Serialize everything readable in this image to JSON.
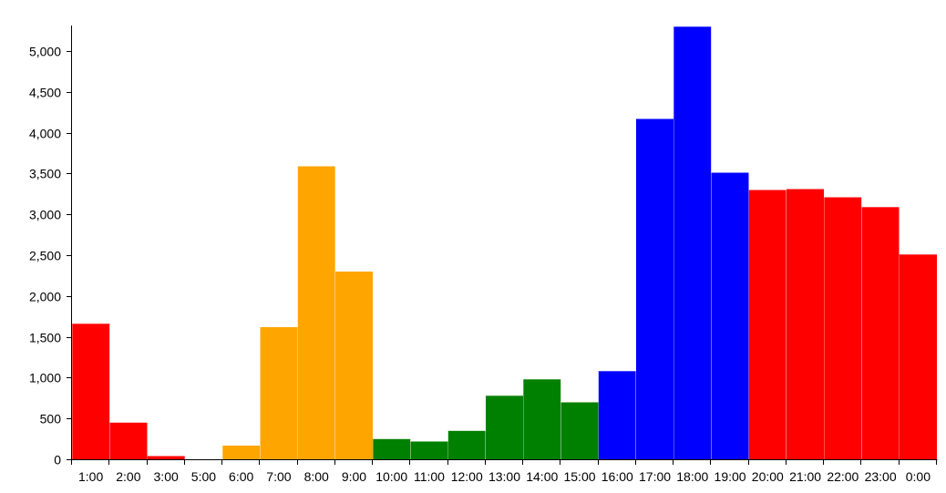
{
  "chart_data": {
    "type": "bar",
    "categories": [
      "1:00",
      "2:00",
      "3:00",
      "5:00",
      "6:00",
      "7:00",
      "8:00",
      "9:00",
      "10:00",
      "11:00",
      "12:00",
      "13:00",
      "14:00",
      "15:00",
      "16:00",
      "17:00",
      "18:00",
      "19:00",
      "20:00",
      "21:00",
      "22:00",
      "23:00",
      "0:00"
    ],
    "values": [
      1660,
      450,
      40,
      0,
      170,
      1620,
      3590,
      2300,
      250,
      220,
      350,
      780,
      980,
      700,
      1080,
      4170,
      5300,
      3510,
      3300,
      3310,
      3210,
      3090,
      2510
    ],
    "bar_colors": [
      "#ff0000",
      "#ff0000",
      "#ff0000",
      "#ff0000",
      "#ffa500",
      "#ffa500",
      "#ffa500",
      "#ffa500",
      "#008000",
      "#008000",
      "#008000",
      "#008000",
      "#008000",
      "#008000",
      "#0000ff",
      "#0000ff",
      "#0000ff",
      "#0000ff",
      "#ff0000",
      "#ff0000",
      "#ff0000",
      "#ff0000",
      "#ff0000"
    ],
    "ylim": [
      0,
      5300
    ],
    "yticks": [
      0,
      500,
      1000,
      1500,
      2000,
      2500,
      3000,
      3500,
      4000,
      4500,
      5000
    ],
    "ytick_labels": [
      "0",
      "500",
      "1,000",
      "1,500",
      "2,000",
      "2,500",
      "3,000",
      "3,500",
      "4,000",
      "4,500",
      "5,000"
    ],
    "title": "",
    "xlabel": "",
    "ylabel": "",
    "grid": false,
    "legend": false
  }
}
